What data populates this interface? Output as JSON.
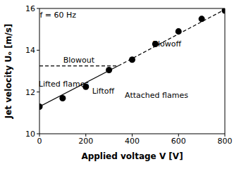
{
  "chart_data": {
    "type": "scatter",
    "x_label": "Applied voltage V  [V]",
    "y_label": "Jet velocity Uₒ  [m/s]",
    "x": [
      0,
      100,
      200,
      300,
      400,
      500,
      600,
      700,
      800
    ],
    "values": [
      11.3,
      11.7,
      12.25,
      13.05,
      13.55,
      14.3,
      14.9,
      15.5,
      15.9
    ],
    "color": "#000000",
    "marker": "circle",
    "lines": [
      {
        "x": [
          0,
          340
        ],
        "values": [
          11.3,
          13.25
        ],
        "line_style": "solid"
      },
      {
        "x": [
          340,
          800
        ],
        "values": [
          13.25,
          15.95
        ],
        "line_style": "dashed"
      },
      {
        "x": [
          0,
          340
        ],
        "values": [
          13.25,
          13.25
        ],
        "line_style": "dashed"
      }
    ],
    "annotations": [
      {
        "text": "f = 60 Hz",
        "x": 80,
        "y": 15.7
      },
      {
        "text": "Blowout",
        "x": 170,
        "y": 13.55
      },
      {
        "text": "Lifted flames",
        "x": 105,
        "y": 12.4
      },
      {
        "text": "Liftoff",
        "x": 275,
        "y": 12.05
      },
      {
        "text": "Blowoff",
        "x": 550,
        "y": 14.3
      },
      {
        "text": "Attached flames",
        "x": 505,
        "y": 11.85
      }
    ],
    "xlim": [
      0,
      800
    ],
    "ylim": [
      10,
      16
    ],
    "xticks": [
      0,
      200,
      400,
      600,
      800
    ],
    "yticks": [
      10,
      12,
      14,
      16
    ],
    "grid": false
  }
}
